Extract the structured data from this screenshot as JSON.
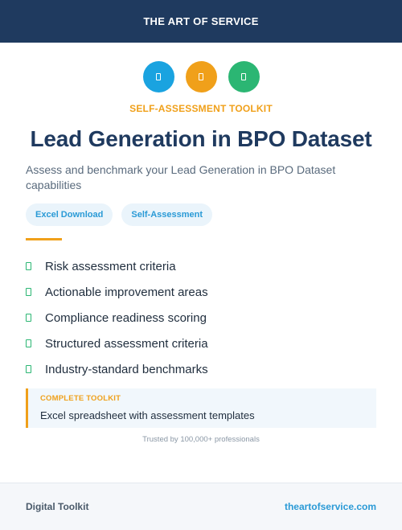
{
  "header": {
    "brand": "THE ART OF SERVICE",
    "color": "#1f3a5f"
  },
  "icons": [
    {
      "name": "document-icon",
      "color": "#1aa3e0"
    },
    {
      "name": "document-icon",
      "color": "#f0a01a"
    },
    {
      "name": "document-icon",
      "color": "#2bb673"
    }
  ],
  "kicker": "SELF-ASSESSMENT TOOLKIT",
  "title": "Lead Generation in BPO Dataset",
  "subtitle": "Assess and benchmark your Lead Generation in BPO Dataset capabilities",
  "tags": [
    "Excel Download",
    "Self-Assessment"
  ],
  "features": [
    "Risk assessment criteria",
    "Actionable improvement areas",
    "Compliance readiness scoring",
    "Structured assessment criteria",
    "Industry-standard benchmarks"
  ],
  "toolkit": {
    "label": "COMPLETE TOOLKIT",
    "description": "Excel spreadsheet with assessment templates"
  },
  "trusted": "Trusted by 100,000+ professionals",
  "footer": {
    "left": "Digital Toolkit",
    "right": "theartofservice.com"
  },
  "colors": {
    "accent": "#f0a01a",
    "link": "#2a9ad6",
    "check": "#2bb673"
  }
}
